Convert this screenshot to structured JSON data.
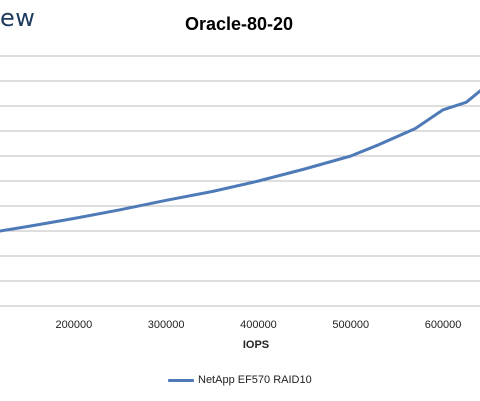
{
  "header": {
    "brand_fragment": "ew"
  },
  "chart_data": {
    "type": "line",
    "title": "Oracle-80-20",
    "xlabel": "IOPS",
    "ylabel": "",
    "xlim": [
      120000,
      640000
    ],
    "x_ticks": [
      200000,
      300000,
      400000,
      500000,
      600000
    ],
    "x_tick_labels": [
      "200000",
      "300000",
      "400000",
      "500000",
      "600000"
    ],
    "y_gridlines": 10,
    "grid": "horizontal",
    "legend_position": "bottom",
    "series": [
      {
        "name": "NetApp EF570 RAID10",
        "color": "#4f7ab8",
        "x": [
          120000,
          150000,
          200000,
          250000,
          300000,
          350000,
          400000,
          450000,
          500000,
          530000,
          570000,
          590000,
          600000,
          625000,
          640000
        ],
        "y": [
          0.3,
          0.318,
          0.35,
          0.385,
          0.423,
          0.458,
          0.5,
          0.548,
          0.6,
          0.645,
          0.71,
          0.76,
          0.785,
          0.815,
          0.86
        ]
      }
    ]
  },
  "colors": {
    "grid": "#bdbdbd",
    "axis_text": "#222222",
    "title": "#000000",
    "brand": "#1e3a5f"
  }
}
